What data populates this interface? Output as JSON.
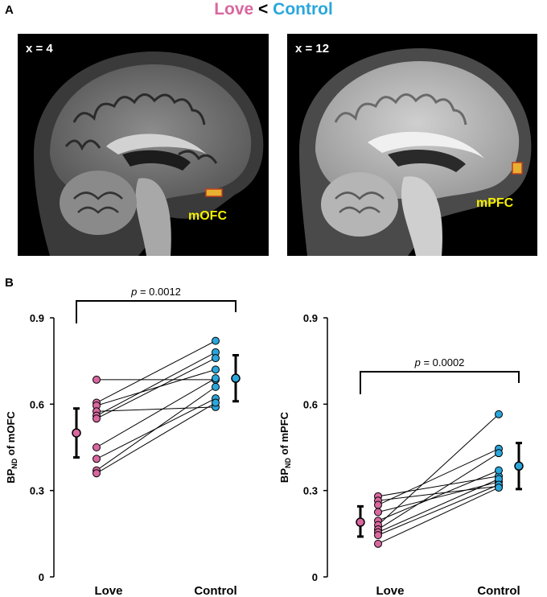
{
  "panel_a": {
    "label": "A",
    "title_love": "Love",
    "title_lt": "<",
    "title_control": "Control",
    "left_image": {
      "slice": "x = 4",
      "roi": "mOFC"
    },
    "right_image": {
      "slice": "x = 12",
      "roi": "mPFC"
    }
  },
  "panel_b": {
    "label": "B"
  },
  "colors": {
    "love": "#d9679f",
    "control": "#2aa6dc",
    "roi_label": "#f5f000"
  },
  "chart_data": [
    {
      "type": "scatter",
      "ylabel_main": "BP",
      "ylabel_sub": "ND",
      "ylabel_rest": " of mOFC",
      "categories": [
        "Love",
        "Control"
      ],
      "yticks": [
        "0",
        "0.3",
        "0.6",
        "0.9"
      ],
      "ylim": [
        0,
        0.9
      ],
      "pairs": [
        [
          0.685,
          0.685
        ],
        [
          0.605,
          0.82
        ],
        [
          0.595,
          0.72
        ],
        [
          0.575,
          0.59
        ],
        [
          0.56,
          0.78
        ],
        [
          0.55,
          0.76
        ],
        [
          0.45,
          0.69
        ],
        [
          0.41,
          0.62
        ],
        [
          0.37,
          0.66
        ],
        [
          0.36,
          0.605
        ]
      ],
      "mean_love": 0.5,
      "err_love": [
        0.415,
        0.585
      ],
      "mean_control": 0.69,
      "err_control": [
        0.61,
        0.77
      ],
      "annotation_p": "p",
      "annotation_rest": " = 0.0012"
    },
    {
      "type": "scatter",
      "ylabel_main": "BP",
      "ylabel_sub": "ND",
      "ylabel_rest": " of mPFC",
      "categories": [
        "Love",
        "Control"
      ],
      "yticks": [
        "0",
        "0.3",
        "0.6",
        "0.9"
      ],
      "ylim": [
        0,
        0.9
      ],
      "pairs": [
        [
          0.28,
          0.35
        ],
        [
          0.265,
          0.315
        ],
        [
          0.25,
          0.445
        ],
        [
          0.225,
          0.33
        ],
        [
          0.195,
          0.37
        ],
        [
          0.18,
          0.565
        ],
        [
          0.165,
          0.43
        ],
        [
          0.155,
          0.34
        ],
        [
          0.145,
          0.32
        ],
        [
          0.115,
          0.31
        ]
      ],
      "mean_love": 0.19,
      "err_love": [
        0.14,
        0.245
      ],
      "mean_control": 0.385,
      "err_control": [
        0.305,
        0.465
      ],
      "annotation_p": "p",
      "annotation_rest": " = 0.0002"
    }
  ]
}
